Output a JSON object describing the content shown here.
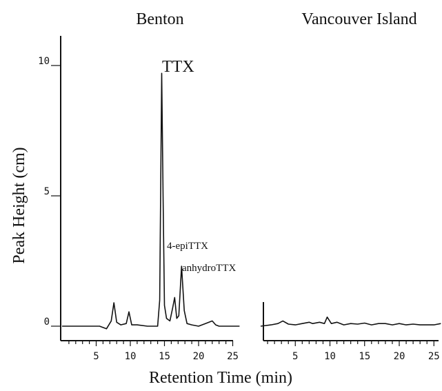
{
  "chart_data": [
    {
      "type": "line",
      "title": "Benton",
      "xlabel": "Retention Time (min)",
      "ylabel": "Peak Height (cm)",
      "xlim": [
        0,
        26
      ],
      "ylim": [
        0,
        11
      ],
      "x_ticks": [
        "5",
        "10",
        "15",
        "20",
        "25"
      ],
      "y_ticks": [
        "0",
        "5",
        "10"
      ],
      "series": [
        {
          "x": [
            0,
            4,
            5.5,
            6.5,
            7.2,
            7.6,
            8.0,
            8.6,
            9.4,
            9.8,
            10.2,
            11,
            12.5,
            14.0,
            14.3,
            14.6,
            14.8,
            15.0,
            15.3,
            15.8,
            16.2,
            16.5,
            16.8,
            17.1,
            17.5,
            17.9,
            18.3,
            19,
            20,
            21,
            22,
            22.5,
            23,
            24,
            26
          ],
          "values": [
            0,
            0,
            0,
            -0.1,
            0.2,
            0.9,
            0.15,
            0.05,
            0.1,
            0.55,
            0.05,
            0.05,
            0,
            0,
            1.0,
            9.7,
            5.0,
            0.8,
            0.3,
            0.2,
            0.7,
            1.1,
            0.3,
            0.4,
            2.3,
            0.6,
            0.1,
            0.05,
            0,
            0.1,
            0.2,
            0.05,
            0,
            0,
            0
          ]
        }
      ],
      "annotations": [
        "TTX",
        "4-epiTTX",
        "anhydroTTX"
      ]
    },
    {
      "type": "line",
      "title": "Vancouver Island",
      "xlabel": "Retention Time (min)",
      "xlim": [
        0,
        26
      ],
      "ylim": [
        0,
        11
      ],
      "x_ticks": [
        "5",
        "10",
        "15",
        "20",
        "25"
      ],
      "series": [
        {
          "x": [
            0,
            1.5,
            2.5,
            3.2,
            4,
            5,
            6,
            7,
            7.5,
            8.5,
            9.2,
            9.6,
            10.2,
            11,
            12,
            13,
            14,
            15,
            16,
            17,
            18,
            19,
            20,
            21,
            22,
            23,
            24,
            25,
            26
          ],
          "values": [
            0,
            0.05,
            0.1,
            0.2,
            0.08,
            0.05,
            0.1,
            0.15,
            0.1,
            0.15,
            0.1,
            0.35,
            0.1,
            0.15,
            0.05,
            0.1,
            0.08,
            0.12,
            0.05,
            0.1,
            0.1,
            0.05,
            0.1,
            0.05,
            0.08,
            0.05,
            0.05,
            0.05,
            0.1
          ]
        }
      ]
    }
  ]
}
